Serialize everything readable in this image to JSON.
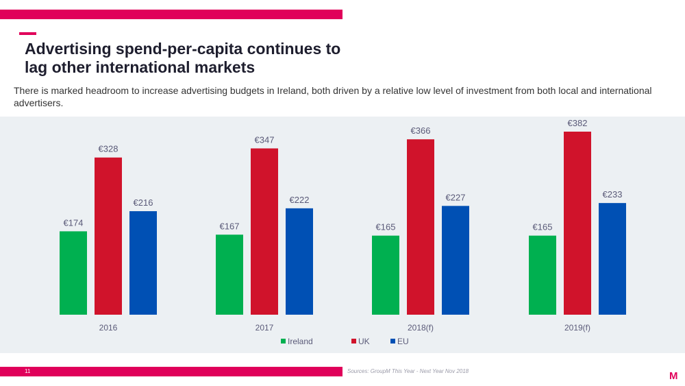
{
  "header": {
    "title": "Advertising spend-per-capita continues to lag other international markets",
    "title_line1": "Advertising spend-per-capita continues to",
    "title_line2": "lag other international markets",
    "subtitle": "There is marked headroom to increase advertising budgets in Ireland, both driven by a relative low level of investment from both local and international advertisers."
  },
  "footer": {
    "page_number": "11",
    "source": "Sources: GroupM This Year - Next Year Nov 2018",
    "logo": "M"
  },
  "colors": {
    "brand": "#e0005a",
    "ireland": "#00b050",
    "uk": "#d0132b",
    "eu": "#0050b4"
  },
  "chart_data": {
    "type": "bar",
    "title": "",
    "xlabel": "",
    "ylabel": "",
    "categories": [
      "2016",
      "2017",
      "2018(f)",
      "2019(f)"
    ],
    "series": [
      {
        "name": "Ireland",
        "values": [
          174,
          167,
          165,
          165
        ],
        "labels": [
          "€174",
          "€167",
          "€165",
          "€165"
        ],
        "color": "#00b050"
      },
      {
        "name": "UK",
        "values": [
          328,
          347,
          366,
          382
        ],
        "labels": [
          "€328",
          "€347",
          "€366",
          "€382"
        ],
        "color": "#d0132b"
      },
      {
        "name": "EU",
        "values": [
          216,
          222,
          227,
          233
        ],
        "labels": [
          "€216",
          "€222",
          "€227",
          "€233"
        ],
        "color": "#0050b4"
      }
    ],
    "ylim": [
      0,
      400
    ],
    "grid": false,
    "legend": "bottom-center",
    "currency": "€"
  }
}
